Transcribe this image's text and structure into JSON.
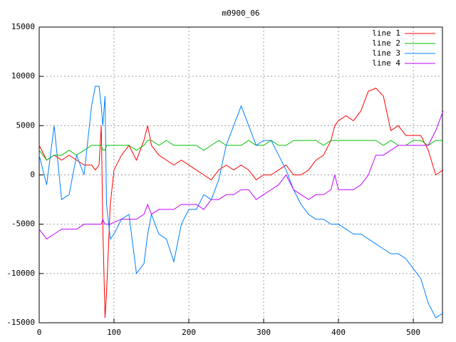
{
  "chart_data": {
    "type": "line",
    "title": "m0900_06",
    "x": [
      0,
      10,
      20,
      30,
      40,
      50,
      60,
      70,
      75,
      80,
      83,
      85,
      88,
      90,
      95,
      100,
      110,
      120,
      130,
      140,
      145,
      150,
      160,
      170,
      180,
      190,
      200,
      210,
      220,
      230,
      240,
      250,
      260,
      270,
      280,
      290,
      300,
      310,
      320,
      330,
      340,
      350,
      360,
      370,
      380,
      390,
      395,
      400,
      410,
      420,
      430,
      440,
      450,
      460,
      470,
      480,
      490,
      500,
      510,
      520,
      530,
      540
    ],
    "series": [
      {
        "name": "line 1",
        "color": "#ff0000",
        "values": [
          3000,
          1500,
          2000,
          1500,
          2000,
          1500,
          1000,
          1000,
          500,
          1000,
          5000,
          -5000,
          -14500,
          -12000,
          -3000,
          500,
          2000,
          3000,
          1500,
          3500,
          5000,
          3000,
          2000,
          1500,
          1000,
          1500,
          1000,
          500,
          0,
          -500,
          500,
          1000,
          500,
          1000,
          500,
          -500,
          0,
          0,
          500,
          1000,
          0,
          0,
          500,
          1500,
          2000,
          3500,
          5000,
          5500,
          6000,
          5500,
          6500,
          8500,
          8800,
          8000,
          4500,
          5000,
          4000,
          4000,
          4000,
          2500,
          0,
          500
        ]
      },
      {
        "name": "line 2",
        "color": "#00c000",
        "values": [
          2500,
          1500,
          2000,
          2000,
          2500,
          2000,
          2500,
          3000,
          3000,
          3000,
          3000,
          2500,
          2500,
          3000,
          3000,
          3000,
          3000,
          3000,
          2500,
          3000,
          3500,
          3500,
          3000,
          3500,
          3000,
          3000,
          3000,
          3000,
          2500,
          3000,
          3500,
          3000,
          3000,
          3000,
          3500,
          3000,
          3000,
          3500,
          3000,
          3000,
          3500,
          3500,
          3500,
          3500,
          3000,
          3500,
          3500,
          3500,
          3500,
          3500,
          3500,
          3500,
          3500,
          3000,
          3500,
          3000,
          3000,
          3500,
          3500,
          3000,
          3500,
          3500
        ]
      },
      {
        "name": "line 3",
        "color": "#0080ff",
        "values": [
          2000,
          -1000,
          5000,
          -2500,
          -2000,
          2000,
          0,
          7000,
          9000,
          9000,
          7000,
          5000,
          8000,
          -3000,
          -6500,
          -6000,
          -4500,
          -4000,
          -10000,
          -9000,
          -6000,
          -4000,
          -6000,
          -6500,
          -8800,
          -5000,
          -3500,
          -3500,
          -2000,
          -2500,
          -500,
          3000,
          5000,
          7000,
          5000,
          3000,
          3500,
          3500,
          2000,
          500,
          -1500,
          -3000,
          -4000,
          -4500,
          -4500,
          -5000,
          -5000,
          -5000,
          -5500,
          -6000,
          -6000,
          -6500,
          -7000,
          -7500,
          -8000,
          -8000,
          -8500,
          -9500,
          -10500,
          -13000,
          -14500,
          -14000
        ]
      },
      {
        "name": "line 4",
        "color": "#c000ff",
        "values": [
          -5500,
          -6500,
          -6000,
          -5500,
          -5500,
          -5500,
          -5000,
          -5000,
          -5000,
          -5000,
          -5000,
          -4500,
          -5000,
          -5000,
          -5000,
          -4800,
          -4500,
          -4500,
          -4500,
          -4000,
          -3000,
          -4000,
          -3500,
          -3500,
          -3500,
          -3000,
          -3000,
          -3000,
          -3500,
          -2500,
          -2500,
          -2000,
          -2000,
          -1500,
          -1500,
          -2500,
          -2000,
          -1500,
          -1000,
          0,
          -1500,
          -2000,
          -2500,
          -2000,
          -2000,
          -1500,
          0,
          -1500,
          -1500,
          -1500,
          -1000,
          0,
          2000,
          2000,
          2500,
          3000,
          3000,
          3000,
          3000,
          3000,
          4500,
          6500
        ]
      }
    ],
    "xlim": [
      0,
      539
    ],
    "xticks": [
      0,
      100,
      200,
      300,
      400,
      500
    ],
    "ylim": [
      -15000,
      15000
    ],
    "yticks": [
      -15000,
      -10000,
      -5000,
      0,
      5000,
      10000,
      15000
    ],
    "grid": true,
    "legend": "top-right"
  }
}
